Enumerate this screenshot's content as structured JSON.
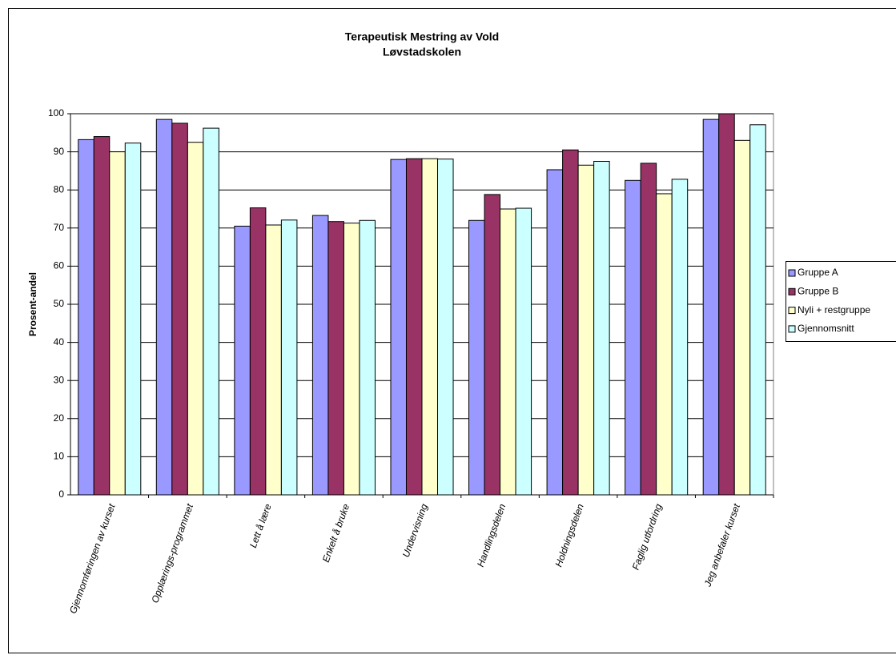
{
  "chart_data": {
    "type": "bar",
    "title": "Terapeutisk Mestring av Vold",
    "subtitle": "Løvstadskolen",
    "y_label": "Prosent-andel",
    "categories": [
      "Gjennomføringen av kurset",
      "Opplærings-programmet",
      "Lett å lære",
      "Enkelt å bruke",
      "Undervisning",
      "Handlingsdelen",
      "Holdningsdelen",
      "Faglig utfordring",
      "Jeg anbefaler kurset"
    ],
    "series": [
      {
        "name": "Gruppe A",
        "color": "#9999ff",
        "values": [
          93.2,
          98.5,
          70.5,
          73.3,
          88,
          72,
          85.3,
          82.5,
          98.5
        ]
      },
      {
        "name": "Gruppe B",
        "color": "#993366",
        "values": [
          94,
          97.5,
          75.3,
          71.7,
          88.2,
          78.8,
          90.5,
          87,
          100
        ]
      },
      {
        "name": "Nyli + restgruppe",
        "color": "#ffffcc",
        "values": [
          90,
          92.5,
          70.8,
          71.3,
          88.2,
          75,
          86.5,
          79,
          93
        ]
      },
      {
        "name": "Gjennomsnitt",
        "color": "#ccffff",
        "values": [
          92.3,
          96.2,
          72.1,
          72,
          88.1,
          75.2,
          87.5,
          82.8,
          97.1
        ]
      }
    ],
    "ylim": [
      0,
      100
    ],
    "yticks": [
      0,
      10,
      20,
      30,
      40,
      50,
      60,
      70,
      80,
      90,
      100
    ],
    "grid": true,
    "legend": "right"
  }
}
